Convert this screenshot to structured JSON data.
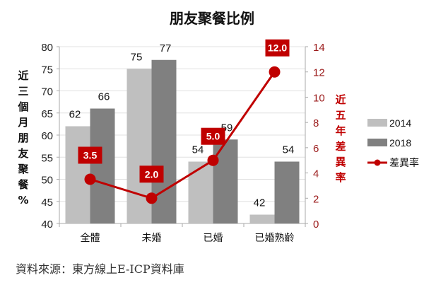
{
  "title": "朋友聚餐比例",
  "source": "資料來源：東方線上E-ICP資料庫",
  "left_axis_label": "近三個月朋友聚餐%",
  "right_axis_label": "近五年差異率",
  "colors": {
    "s2014": "#bfbfbf",
    "s2018": "#808080",
    "diff": "#c00000"
  },
  "chart_data": {
    "type": "bar",
    "title": "朋友聚餐比例",
    "categories": [
      "全體",
      "未婚",
      "已婚",
      "已婚熟齡"
    ],
    "series": [
      {
        "name": "2014",
        "type": "bar",
        "axis": "left",
        "values": [
          62,
          75,
          54,
          42
        ]
      },
      {
        "name": "2018",
        "type": "bar",
        "axis": "left",
        "values": [
          66,
          77,
          59,
          54
        ]
      },
      {
        "name": "差異率",
        "type": "line",
        "axis": "right",
        "values": [
          3.5,
          2.0,
          5.0,
          12.0
        ]
      }
    ],
    "ylabel": "近三個月朋友聚餐%",
    "y2label": "近五年差異率",
    "ylim": [
      40,
      80
    ],
    "yticks": [
      40,
      45,
      50,
      55,
      60,
      65,
      70,
      75,
      80
    ],
    "y2lim": [
      0,
      14
    ],
    "y2ticks": [
      0,
      2,
      4,
      6,
      8,
      10,
      12,
      14
    ],
    "grid": true,
    "legend_position": "right"
  }
}
